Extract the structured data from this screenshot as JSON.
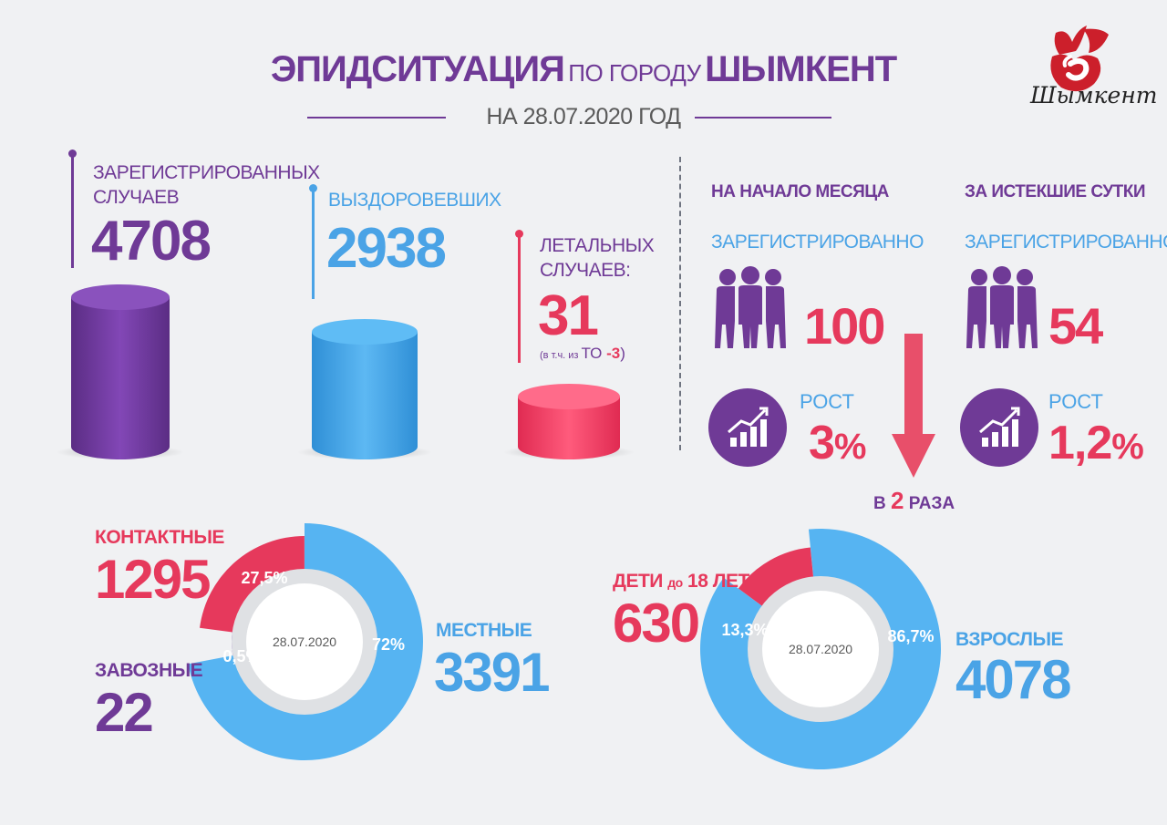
{
  "header": {
    "title_main": "ЭПИДСИТУАЦИЯ",
    "title_mid": "ПО ГОРОДУ",
    "title_city": "ШЫМКЕНТ",
    "date": "НА 28.07.2020 ГОД",
    "logo_text": "Шымкент"
  },
  "stats": {
    "registered": {
      "label_l1": "ЗАРЕГИСТРИРОВАННЫХ",
      "label_l2": "СЛУЧАЕВ",
      "value": "4708"
    },
    "recovered": {
      "label": "ВЫЗДОРОВЕВШИХ",
      "value": "2938"
    },
    "deaths": {
      "label_l1": "ЛЕТАЛЬНЫХ",
      "label_l2": "СЛУЧАЕВ:",
      "value": "31",
      "note_pre": "(в т.ч. из ",
      "note_to": "ТО",
      "note_val": " -3",
      "note_post": ")"
    }
  },
  "month_start": {
    "heading": "НА НАЧАЛО МЕСЯЦА",
    "sub": "ЗАРЕГИСТРИРОВАННО",
    "value": "100",
    "growth_label": "РОСТ",
    "growth_value": "3",
    "growth_unit": "%"
  },
  "last_day": {
    "heading": "ЗА ИСТЕКШИЕ СУТКИ",
    "sub": "ЗАРЕГИСТРИРОВАННО",
    "value": "54",
    "growth_label": "РОСТ",
    "growth_value": "1,2",
    "growth_unit": "%"
  },
  "decrease": {
    "pre": "В ",
    "num": "2",
    "post": " РАЗА"
  },
  "colors": {
    "purple": "#6f3a96",
    "blue": "#4aa3e6",
    "blue_light": "#56b4f2",
    "red": "#e6395c"
  },
  "chart_data": [
    {
      "type": "bar",
      "categories": [
        "ЗАРЕГИСТРИРОВАННЫХ СЛУЧАЕВ",
        "ВЫЗДОРОВЕВШИХ",
        "ЛЕТАЛЬНЫХ СЛУЧАЕВ"
      ],
      "values": [
        4708,
        2938,
        31
      ]
    },
    {
      "type": "pie",
      "center_label": "28.07.2020",
      "labels": [
        "МЕСТНЫЕ",
        "КОНТАКТНЫЕ",
        "ЗАВОЗНЫЕ"
      ],
      "values": [
        3391,
        1295,
        22
      ],
      "percent_labels": [
        "72%",
        "27,5%",
        "0,5%"
      ],
      "percents": [
        72,
        27.5,
        0.5
      ]
    },
    {
      "type": "pie",
      "center_label": "28.07.2020",
      "labels": [
        "ВЗРОСЛЫЕ",
        "ДЕТИ до 18 ЛЕТ"
      ],
      "values": [
        4078,
        630
      ],
      "percent_labels": [
        "86,7%",
        "13,3%"
      ],
      "percents": [
        86.7,
        13.3
      ],
      "label_children_main": "ДЕТИ",
      "label_children_small": "до",
      "label_children_end": "18 ЛЕТ"
    }
  ]
}
